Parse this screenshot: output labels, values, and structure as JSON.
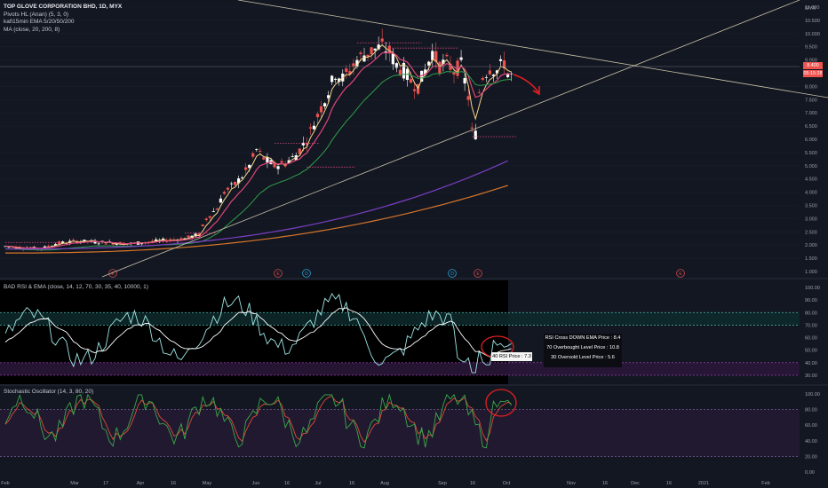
{
  "header": {
    "symbol_title": "TOP GLOVE CORPORATION BHD, 1D, MYX",
    "indicators": [
      "Pivots HL (Anan) (5, 3, 0)",
      "kafi15min EMA 5/20/50/200",
      "MA (close, 20, 200, 8)"
    ],
    "currency": "MYR"
  },
  "rsi_panel": {
    "title": "BAD RSI & EMA (close, 14, 12, 70, 30, 35, 40, 10000, 1)",
    "info_lines": [
      "RSI Cross DOWN EMA Price : 8.4",
      "70 Overbought Level Price : 10.8",
      "30 Oversold Level Price : 5.6"
    ],
    "rsi_price_label": "40 RSI Price : 7.3"
  },
  "stoch_panel": {
    "title": "Stochastic Oscillator (14, 3, 80, 20)"
  },
  "price_tags": {
    "last_price": "8.400",
    "countdown": "05:15:28"
  },
  "colors": {
    "background": "#131722",
    "up": "#ffffff",
    "down": "#ef5350",
    "ema5": "#f5d58a",
    "ema20": "#e0457b",
    "ema50": "#2e9e4a",
    "ma200_purple": "#7b3fc4",
    "ma200_orange": "#d8762b",
    "rsi": "#9fe6e6",
    "rsi_ema": "#ffffff",
    "stoch_k": "#3aa84a",
    "stoch_d": "#e04a3a",
    "annotation": "#e02020"
  },
  "chart_data": [
    {
      "type": "candlestick",
      "title": "TOP GLOVE CORPORATION BHD, 1D, MYX",
      "ylabel": "MYR",
      "y_ticks": [
        "1.000",
        "1.500",
        "2.000",
        "2.500",
        "3.000",
        "3.500",
        "4.000",
        "4.500",
        "5.000",
        "5.500",
        "6.000",
        "6.500",
        "7.000",
        "7.500",
        "8.000",
        "8.500",
        "9.000",
        "9.500",
        "10.000",
        "10.500",
        "11.000"
      ],
      "x_ticks": [
        "Feb",
        "Mar",
        "17",
        "Apr",
        "16",
        "May",
        "Jun",
        "16",
        "Jul",
        "16",
        "Aug",
        "Sep",
        "16",
        "Oct",
        "Nov",
        "16",
        "Dec",
        "16",
        "2021",
        "Feb"
      ],
      "ylim": [
        1.0,
        11.0
      ],
      "last_price": 8.4,
      "approx_close_path": [
        {
          "date": "Feb",
          "close": 1.95
        },
        {
          "date": "Mar",
          "close": 2.05
        },
        {
          "date": "Apr",
          "close": 2.1
        },
        {
          "date": "May",
          "close": 2.25
        },
        {
          "date": "May-15",
          "close": 3.2
        },
        {
          "date": "Jun",
          "close": 4.8
        },
        {
          "date": "Jun-16",
          "close": 5.0
        },
        {
          "date": "Jul",
          "close": 6.2
        },
        {
          "date": "Jul-16",
          "close": 8.6
        },
        {
          "date": "Aug",
          "close": 9.3
        },
        {
          "date": "Aug-16",
          "close": 8.3
        },
        {
          "date": "Sep",
          "close": 8.8
        },
        {
          "date": "Sep-16",
          "close": 6.2
        },
        {
          "date": "Sep-22",
          "close": 8.5
        },
        {
          "date": "Sep-30",
          "close": 8.4
        }
      ],
      "event_markers": [
        "E",
        "E",
        "D",
        "E",
        "D",
        "E",
        "E"
      ]
    },
    {
      "type": "line",
      "title": "BAD RSI & EMA (close, 14, 12, 70, 30, 35, 40, 10000, 1)",
      "y_ticks": [
        "100.00",
        "90.00",
        "80.00",
        "70.00",
        "60.00",
        "50.00",
        "40.00",
        "30.00"
      ],
      "ylim": [
        25,
        100
      ],
      "levels": [
        80,
        70,
        40,
        30
      ]
    },
    {
      "type": "line",
      "title": "Stochastic Oscillator (14, 3, 80, 20)",
      "y_ticks": [
        "100.00",
        "80.00",
        "60.00",
        "40.00",
        "20.00",
        "0.00"
      ],
      "ylim": [
        0,
        100
      ],
      "levels": [
        80,
        20
      ]
    }
  ]
}
